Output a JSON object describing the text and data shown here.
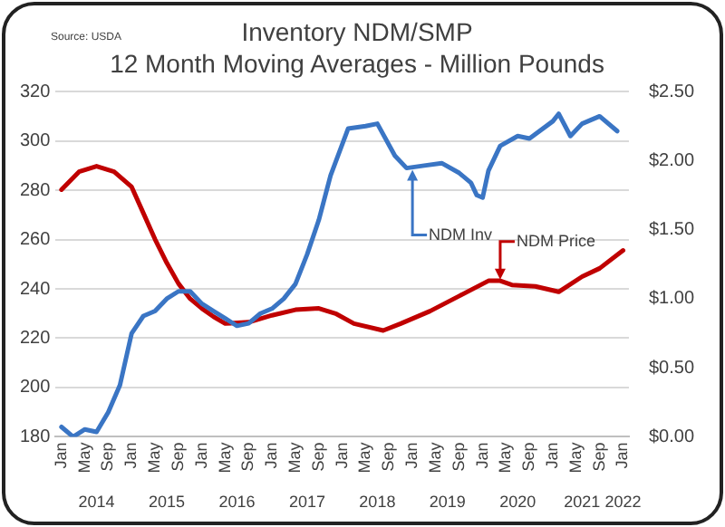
{
  "chart_data": {
    "type": "line",
    "title": "Inventory NDM/SMP",
    "subtitle": "12 Month Moving Averages - Million Pounds",
    "xlim": [
      "2013-12",
      "2022-02"
    ],
    "xticks": [
      {
        "value": "2014-01",
        "label": "Jan"
      },
      {
        "value": "2014-05",
        "label": "May"
      },
      {
        "value": "2014-09",
        "label": "Sep"
      },
      {
        "value": "2015-01",
        "label": "Jan"
      },
      {
        "value": "2015-05",
        "label": "May"
      },
      {
        "value": "2015-09",
        "label": "Sep"
      },
      {
        "value": "2016-01",
        "label": "Jan"
      },
      {
        "value": "2016-05",
        "label": "May"
      },
      {
        "value": "2016-09",
        "label": "Sep"
      },
      {
        "value": "2017-01",
        "label": "Jan"
      },
      {
        "value": "2017-05",
        "label": "May"
      },
      {
        "value": "2017-09",
        "label": "Sep"
      },
      {
        "value": "2018-01",
        "label": "Jan"
      },
      {
        "value": "2018-05",
        "label": "May"
      },
      {
        "value": "2018-09",
        "label": "Sep"
      },
      {
        "value": "2019-01",
        "label": "Jan"
      },
      {
        "value": "2019-05",
        "label": "May"
      },
      {
        "value": "2019-09",
        "label": "Sep"
      },
      {
        "value": "2020-01",
        "label": "Jan"
      },
      {
        "value": "2020-05",
        "label": "May"
      },
      {
        "value": "2020-09",
        "label": "Sep"
      },
      {
        "value": "2021-01",
        "label": "Jan"
      },
      {
        "value": "2021-05",
        "label": "May"
      },
      {
        "value": "2021-09",
        "label": "Sep"
      },
      {
        "value": "2022-01",
        "label": "Jan"
      }
    ],
    "x2lim": [
      "2013-12",
      "2022-02"
    ],
    "x2ticks": [
      {
        "value": "2014-07",
        "label": "2014"
      },
      {
        "value": "2015-07",
        "label": "2015"
      },
      {
        "value": "2016-07",
        "label": "2016"
      },
      {
        "value": "2017-07",
        "label": "2017"
      },
      {
        "value": "2018-07",
        "label": "2018"
      },
      {
        "value": "2019-07",
        "label": "2019"
      },
      {
        "value": "2020-07",
        "label": "2020"
      },
      {
        "value": "2021-06",
        "label": "2021"
      },
      {
        "value": "2022-01",
        "label": "2022"
      }
    ],
    "ylim": [
      180,
      320
    ],
    "yticks": [
      180,
      200,
      220,
      240,
      260,
      280,
      300,
      320
    ],
    "y2lim": [
      0,
      2.5
    ],
    "y2ticks": [
      {
        "value": 0,
        "label": "$0.00"
      },
      {
        "value": 0.5,
        "label": "$0.50"
      },
      {
        "value": 1,
        "label": "$1.00"
      },
      {
        "value": 1.5,
        "label": "$1.50"
      },
      {
        "value": 2,
        "label": "$2.00"
      },
      {
        "value": 2.5,
        "label": "$2.50"
      }
    ],
    "grid": "y",
    "legend": false,
    "marker": "none",
    "line_style": "solid",
    "series": [
      {
        "color": "#3a75c4",
        "axis": "y",
        "x": [
          "2014-01",
          "2014-03",
          "2014-05",
          "2014-07",
          "2014-09",
          "2014-11",
          "2015-01",
          "2015-03",
          "2015-05",
          "2015-07",
          "2015-09",
          "2015-11",
          "2016-01",
          "2016-03",
          "2016-05",
          "2016-07",
          "2016-09",
          "2016-11",
          "2017-01",
          "2017-03",
          "2017-05",
          "2017-07",
          "2017-09",
          "2017-11",
          "2018-02",
          "2018-05",
          "2018-07",
          "2018-10",
          "2018-12",
          "2019-03",
          "2019-06",
          "2019-09",
          "2019-11",
          "2019-12",
          "2020-01",
          "2020-02",
          "2020-04",
          "2020-07",
          "2020-09",
          "2021-01",
          "2021-02",
          "2021-04",
          "2021-06",
          "2021-09",
          "2021-12"
        ],
        "values": [
          184,
          180,
          183,
          182,
          190,
          201,
          222,
          229,
          231,
          236,
          239,
          239,
          234,
          231,
          228,
          225,
          226,
          230,
          232,
          236,
          242,
          254,
          268,
          286,
          305,
          306,
          307,
          294,
          289,
          290,
          291,
          287,
          283,
          278,
          277,
          288,
          298,
          302,
          301,
          308,
          311,
          302,
          307,
          310,
          304
        ]
      },
      {
        "color": "#c00000",
        "axis": "y2",
        "x": [
          "2014-01",
          "2014-04",
          "2014-07",
          "2014-10",
          "2015-01",
          "2015-03",
          "2015-05",
          "2015-07",
          "2015-09",
          "2015-11",
          "2016-01",
          "2016-03",
          "2016-05",
          "2016-09",
          "2017-01",
          "2017-05",
          "2017-09",
          "2017-12",
          "2018-03",
          "2018-08",
          "2018-11",
          "2019-04",
          "2019-09",
          "2020-02",
          "2020-04",
          "2020-06",
          "2020-10",
          "2021-02",
          "2021-06",
          "2021-09",
          "2022-01"
        ],
        "values": [
          1.79,
          1.92,
          1.96,
          1.92,
          1.81,
          1.62,
          1.43,
          1.26,
          1.11,
          1.0,
          0.93,
          0.87,
          0.82,
          0.83,
          0.88,
          0.92,
          0.93,
          0.89,
          0.82,
          0.77,
          0.82,
          0.91,
          1.02,
          1.13,
          1.13,
          1.1,
          1.09,
          1.05,
          1.16,
          1.22,
          1.35
        ]
      }
    ],
    "annotations": [
      "Source: USDA",
      {
        "text": "NDM Inv",
        "x": "2019-01",
        "y": 289
      },
      {
        "text": "NDM Price",
        "x": "2020-04",
        "y": 243
      }
    ]
  }
}
